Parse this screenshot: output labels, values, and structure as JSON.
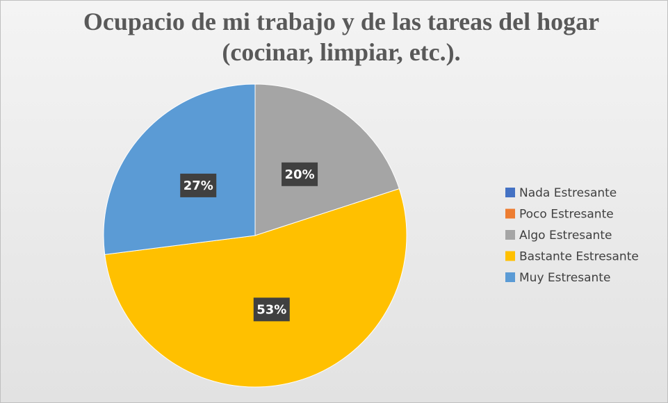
{
  "chart_data": {
    "type": "pie",
    "title": "Ocupacio de mi trabajo y de las tareas del hogar (cocinar, limpiar, etc.).",
    "categories": [
      "Nada Estresante",
      "Poco Estresante",
      "Algo Estresante",
      "Bastante Estresante",
      "Muy Estresante"
    ],
    "values": [
      0,
      0,
      20,
      53,
      27
    ],
    "value_labels": [
      null,
      null,
      "20%",
      "53%",
      "27%"
    ],
    "colors": [
      "#4472c4",
      "#ed7d31",
      "#a5a5a5",
      "#ffc000",
      "#5b9bd5"
    ],
    "legend": "right"
  }
}
